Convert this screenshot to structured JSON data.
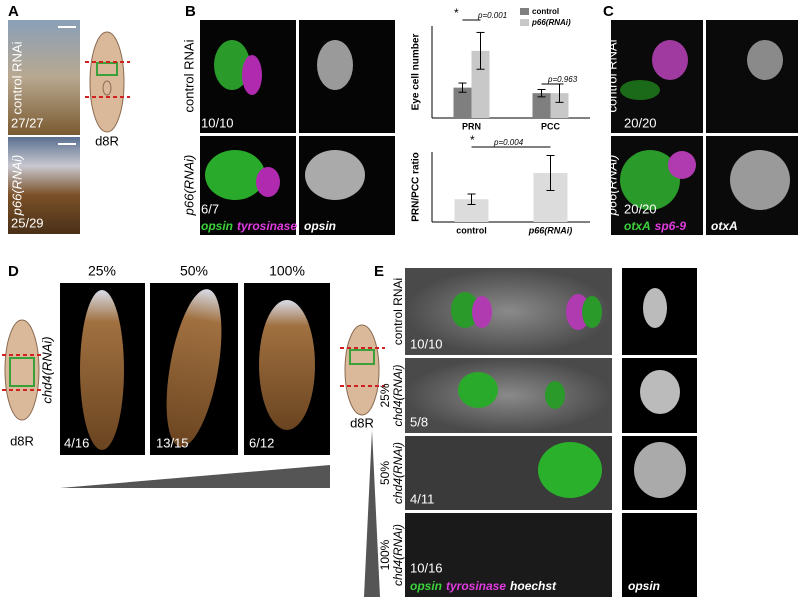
{
  "panels": {
    "A": {
      "label": "A",
      "rows": [
        {
          "condition": "control RNAi",
          "count": "27/27"
        },
        {
          "condition": "p66(RNAi)",
          "count": "25/29"
        }
      ],
      "scheme": "d8R"
    },
    "B": {
      "label": "B",
      "rows": [
        {
          "condition": "control RNAi",
          "count": "10/10"
        },
        {
          "condition": "p66(RNAi)",
          "count": "6/7"
        }
      ],
      "stains": [
        "opsin",
        "tyrosinase"
      ],
      "single_stain": "opsin"
    },
    "C": {
      "label": "C",
      "rows": [
        {
          "condition": "control RNAi",
          "count": "20/20"
        },
        {
          "condition": "p66(RNAi)",
          "count": "20/20"
        }
      ],
      "stains": [
        "otxA",
        "sp6-9"
      ],
      "single_stain": "otxA"
    },
    "D": {
      "label": "D",
      "levels": [
        "25%",
        "50%",
        "100%"
      ],
      "condition": "chd4(RNAi)",
      "counts": [
        "4/16",
        "13/15",
        "6/12"
      ],
      "scheme": "d8R"
    },
    "E": {
      "label": "E",
      "scheme": "d8R",
      "rows": [
        {
          "condition": "control RNAi",
          "count": "10/10"
        },
        {
          "level": "25%",
          "condition": "chd4(RNAi)",
          "count": "5/8"
        },
        {
          "level": "50%",
          "condition": "chd4(RNAi)",
          "count": "4/11"
        },
        {
          "level": "100%",
          "condition": "chd4(RNAi)",
          "count": "10/16"
        }
      ],
      "stains": [
        "opsin",
        "tyrosinase",
        "hoechst"
      ],
      "single_stain": "opsin"
    }
  },
  "chart_data": [
    {
      "type": "bar",
      "ylabel": "Eye cell number",
      "categories": [
        "PRN",
        "PCC"
      ],
      "series": [
        {
          "name": "control",
          "color": "#7f7f7f",
          "values": [
            33,
            27
          ],
          "errors": [
            5,
            4
          ]
        },
        {
          "name": "p66(RNAi)",
          "color": "#c8c8c8",
          "values": [
            73,
            27
          ],
          "errors": [
            20,
            10
          ]
        }
      ],
      "ylim": [
        0,
        100
      ],
      "annotations": [
        "*",
        "p=0.001",
        "p=0.963"
      ]
    },
    {
      "type": "bar",
      "ylabel": "PRN/PCC ratio",
      "categories": [
        "control",
        "p66(RNAi)"
      ],
      "values": [
        1.3,
        2.8
      ],
      "errors": [
        0.3,
        1.0
      ],
      "color": "#dcdcdc",
      "ylim": [
        0,
        4
      ],
      "annotations": [
        "*",
        "p=0.004"
      ]
    }
  ]
}
